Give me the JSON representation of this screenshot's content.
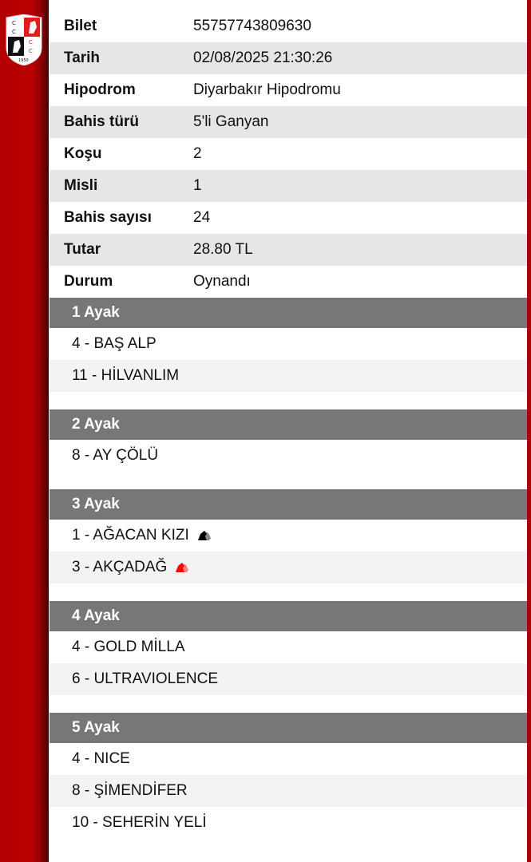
{
  "info": [
    {
      "label": "Bilet",
      "value": "55757743809630"
    },
    {
      "label": "Tarih",
      "value": "02/08/2025 21:30:26"
    },
    {
      "label": "Hipodrom",
      "value": "Diyarbakır Hipodromu"
    },
    {
      "label": "Bahis türü",
      "value": "5'li Ganyan"
    },
    {
      "label": "Koşu",
      "value": "2"
    },
    {
      "label": "Misli",
      "value": "1"
    },
    {
      "label": "Bahis sayısı",
      "value": "24"
    },
    {
      "label": "Tutar",
      "value": "28.80 TL"
    },
    {
      "label": "Durum",
      "value": "Oynandı"
    }
  ],
  "legs": [
    {
      "title": "1 Ayak",
      "horses": [
        {
          "name": "4 - BAŞ ALP"
        },
        {
          "name": "11 - HİLVANLIM"
        }
      ]
    },
    {
      "title": "2 Ayak",
      "horses": [
        {
          "name": "8 - AY ÇÖLÜ"
        }
      ]
    },
    {
      "title": "3 Ayak",
      "horses": [
        {
          "name": "1 - AĞACAN KIZI",
          "icon": "horse-head-black-icon",
          "icon_color": "#000000"
        },
        {
          "name": "3 - AKÇADAĞ",
          "icon": "horse-head-red-icon",
          "icon_color": "#ff0000"
        }
      ]
    },
    {
      "title": "4 Ayak",
      "horses": [
        {
          "name": "4 - GOLD MİLLA"
        },
        {
          "name": "6 - ULTRAVIOLENCE"
        }
      ]
    },
    {
      "title": "5 Ayak",
      "horses": [
        {
          "name": "4 - NICE"
        },
        {
          "name": "8 - ŞİMENDİFER"
        },
        {
          "name": "10 - SEHERİN YELİ"
        }
      ]
    }
  ],
  "logo": {
    "text": "CC CC 1950"
  },
  "colors": {
    "sidebar": "#b40000",
    "header": "#777777"
  }
}
